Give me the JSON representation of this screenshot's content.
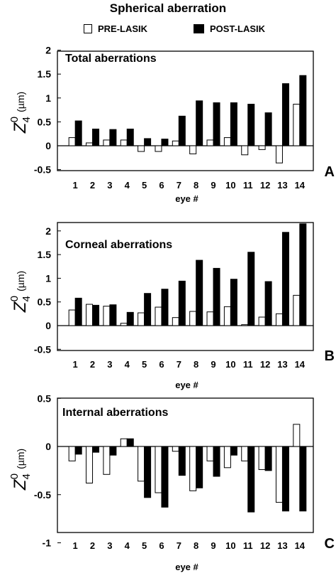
{
  "figure": {
    "title": "Spherical aberration",
    "legend": [
      {
        "label": "PRE-LASIK",
        "fill": "#ffffff"
      },
      {
        "label": "POST-LASIK",
        "fill": "#000000"
      }
    ],
    "ylabel": "Z40 (µm)",
    "xlabel": "eye #"
  },
  "chart_data": [
    {
      "type": "bar",
      "panel_letter": "A",
      "title": "Total aberrations",
      "xlabel": "eye #",
      "ylabel": "Z40 (µm)",
      "ylim": [
        -0.5,
        2
      ],
      "yticks": [
        "2",
        "1.5",
        "1",
        "0.5",
        "0",
        "-0.5"
      ],
      "categories": [
        "1",
        "2",
        "3",
        "4",
        "5",
        "6",
        "7",
        "8",
        "9",
        "10",
        "11",
        "12",
        "13",
        "14"
      ],
      "series": [
        {
          "name": "PRE-LASIK",
          "values": [
            0.17,
            0.06,
            0.12,
            0.12,
            -0.12,
            -0.12,
            0.1,
            -0.17,
            0.12,
            0.17,
            -0.19,
            -0.08,
            -0.36,
            0.87
          ]
        },
        {
          "name": "POST-LASIK",
          "values": [
            0.52,
            0.35,
            0.34,
            0.35,
            0.15,
            0.14,
            0.62,
            0.94,
            0.9,
            0.9,
            0.87,
            0.69,
            1.3,
            1.47
          ]
        }
      ]
    },
    {
      "type": "bar",
      "panel_letter": "B",
      "title": "Corneal aberrations",
      "xlabel": "eye #",
      "ylabel": "Z40 (µm)",
      "ylim": [
        -0.5,
        2.2
      ],
      "yticks": [
        "2",
        "1.5",
        "1",
        "0.5",
        "0",
        "-0.5"
      ],
      "categories": [
        "1",
        "2",
        "3",
        "4",
        "5",
        "6",
        "7",
        "8",
        "9",
        "10",
        "11",
        "12",
        "13",
        "14"
      ],
      "series": [
        {
          "name": "PRE-LASIK",
          "values": [
            0.33,
            0.45,
            0.41,
            0.05,
            0.27,
            0.39,
            0.17,
            0.3,
            0.29,
            0.4,
            0.02,
            0.18,
            0.25,
            0.64
          ]
        },
        {
          "name": "POST-LASIK",
          "values": [
            0.58,
            0.43,
            0.44,
            0.28,
            0.68,
            0.77,
            0.94,
            1.38,
            1.21,
            0.98,
            1.55,
            0.93,
            1.97,
            2.15
          ]
        }
      ]
    },
    {
      "type": "bar",
      "panel_letter": "C",
      "title": "Internal aberrations",
      "xlabel": "eye #",
      "ylabel": "Z40 (µm)",
      "ylim": [
        -1,
        0.5
      ],
      "yticks": [
        "0.5",
        "0",
        "-0.5",
        "-1"
      ],
      "categories": [
        "1",
        "2",
        "3",
        "4",
        "5",
        "6",
        "7",
        "8",
        "9",
        "10",
        "11",
        "12",
        "13",
        "14"
      ],
      "series": [
        {
          "name": "PRE-LASIK",
          "values": [
            -0.15,
            -0.38,
            -0.29,
            0.08,
            -0.36,
            -0.48,
            -0.05,
            -0.46,
            -0.15,
            -0.22,
            -0.15,
            -0.24,
            -0.58,
            0.23
          ]
        },
        {
          "name": "POST-LASIK",
          "values": [
            -0.08,
            -0.06,
            -0.09,
            0.08,
            -0.53,
            -0.63,
            -0.3,
            -0.43,
            -0.31,
            -0.09,
            -0.68,
            -0.25,
            -0.67,
            -0.67
          ]
        }
      ]
    }
  ]
}
